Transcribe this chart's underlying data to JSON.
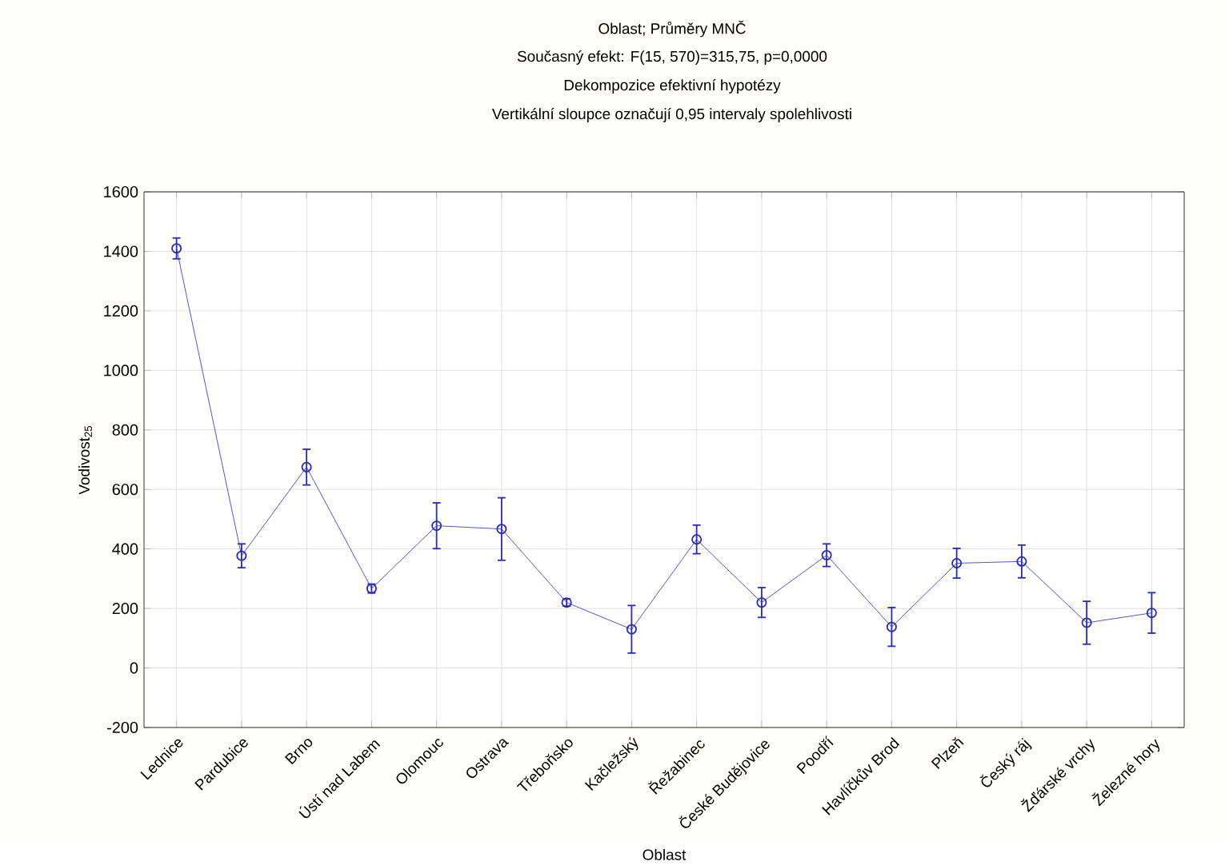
{
  "chart_data": {
    "type": "line",
    "title": "Oblast; Průměry MNČ",
    "subtitle": "Současný efekt: F(15, 570)=315,75, p=0,0000",
    "annotations": [
      "Dekompozice efektivní hypotézy",
      "Vertikální sloupce označují 0,95 intervaly spolehlivosti"
    ],
    "xlabel": "Oblast",
    "ylabel": "Vodivost$_{25}$",
    "categories": [
      "Lednice",
      "Pardubice",
      "Brno",
      "Ústí nad Labem",
      "Olomouc",
      "Ostrava",
      "Třeboňsko",
      "Kačležský",
      "Řežabinec",
      "České Budějovice",
      "Poodří",
      "Havlíčkův Brod",
      "Plzeň",
      "Český ráj",
      "Žďárské vrchy",
      "Železné hory"
    ],
    "series": [
      {
        "color": "#2a2ab8",
        "values": [
          1410,
          377,
          675,
          267,
          478,
          467,
          220,
          130,
          432,
          220,
          379,
          138,
          352,
          358,
          152,
          185
        ],
        "errors": [
          35,
          40,
          60,
          15,
          77,
          105,
          12,
          80,
          48,
          50,
          38,
          65,
          50,
          55,
          72,
          68
        ]
      }
    ],
    "ylim": [
      -200,
      1600
    ],
    "yticks": [
      -200,
      0,
      200,
      400,
      600,
      800,
      1000,
      1200,
      1400,
      1600
    ],
    "grid": true,
    "marker": "circle",
    "line_style": "solid"
  }
}
